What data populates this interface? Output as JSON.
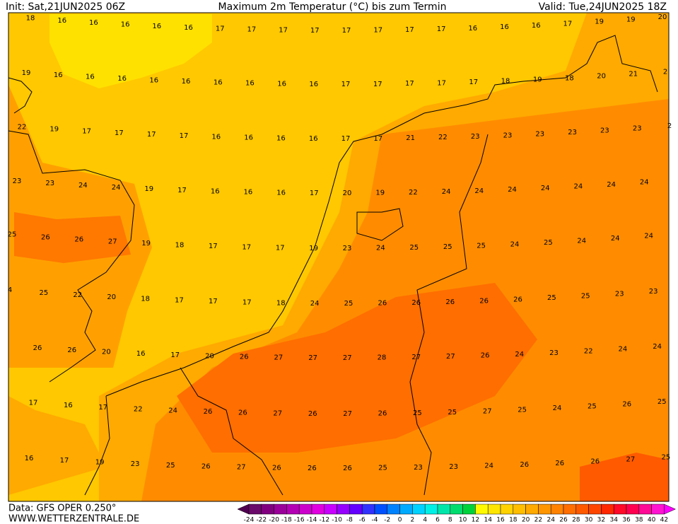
{
  "header": {
    "init": "Init: Sat,21JUN2025 06Z",
    "title": "Maximum 2m Temperatur (°C) bis zum Termin",
    "valid": "Valid: Tue,24JUN2025 18Z"
  },
  "map": {
    "rows": [
      [
        18,
        16,
        16,
        16,
        16,
        16,
        17,
        17,
        17,
        17,
        17,
        17,
        17,
        17,
        16,
        16,
        16,
        17,
        19,
        19,
        20
      ],
      [
        19,
        16,
        16,
        16,
        16,
        16,
        16,
        16,
        16,
        16,
        17,
        17,
        17,
        17,
        17,
        18,
        19,
        18,
        20,
        21,
        2
      ],
      [
        22,
        19,
        17,
        17,
        17,
        17,
        16,
        16,
        16,
        16,
        17,
        17,
        21,
        22,
        23,
        23,
        23,
        23,
        23,
        23,
        2
      ],
      [
        23,
        23,
        24,
        24,
        19,
        17,
        16,
        16,
        16,
        17,
        20,
        19,
        22,
        24,
        24,
        24,
        24,
        24,
        24,
        24
      ],
      [
        25,
        26,
        26,
        27,
        19,
        18,
        17,
        17,
        17,
        19,
        23,
        24,
        25,
        25,
        25,
        24,
        25,
        24,
        24,
        24
      ],
      [
        4,
        25,
        22,
        20,
        18,
        17,
        17,
        17,
        18,
        24,
        25,
        26,
        26,
        26,
        26,
        26,
        25,
        25,
        23,
        23
      ],
      [
        26,
        26,
        20,
        16,
        17,
        20,
        26,
        27,
        27,
        27,
        28,
        27,
        27,
        26,
        24,
        23,
        22,
        24,
        24
      ],
      [
        17,
        16,
        17,
        22,
        24,
        26,
        26,
        27,
        26,
        27,
        26,
        25,
        25,
        27,
        25,
        24,
        25,
        26,
        25
      ],
      [
        16,
        17,
        19,
        23,
        25,
        26,
        27,
        26,
        26,
        26,
        25,
        23,
        23,
        24,
        26,
        26,
        26,
        27,
        25
      ]
    ]
  },
  "footer": {
    "data": "Data: GFS OPER 0.250°",
    "site": "WWW.WETTERZENTRALE.DE"
  },
  "colorbar": {
    "labels": [
      -24,
      -22,
      -20,
      -18,
      -16,
      -14,
      -12,
      -10,
      -8,
      -6,
      -4,
      -2,
      0,
      2,
      4,
      6,
      8,
      10,
      12,
      14,
      16,
      18,
      20,
      22,
      24,
      26,
      28,
      30,
      32,
      34,
      36,
      38,
      40,
      42
    ],
    "colors": [
      "#500050",
      "#6a0a6a",
      "#800080",
      "#9a009a",
      "#b400b4",
      "#cc00cc",
      "#e000e0",
      "#c800ff",
      "#9600ff",
      "#6400ff",
      "#3232ff",
      "#0050ff",
      "#0082ff",
      "#00aaff",
      "#00d2ff",
      "#00f0e6",
      "#00e6aa",
      "#00dc6e",
      "#00d23c",
      "#fffa00",
      "#ffe600",
      "#ffd200",
      "#ffbe00",
      "#ffaa00",
      "#ff9600",
      "#ff8200",
      "#ff6e00",
      "#ff5a00",
      "#ff4600",
      "#ff2800",
      "#ff0a28",
      "#ff0050",
      "#ff0a96",
      "#ff14d2",
      "#ff00ff"
    ]
  }
}
